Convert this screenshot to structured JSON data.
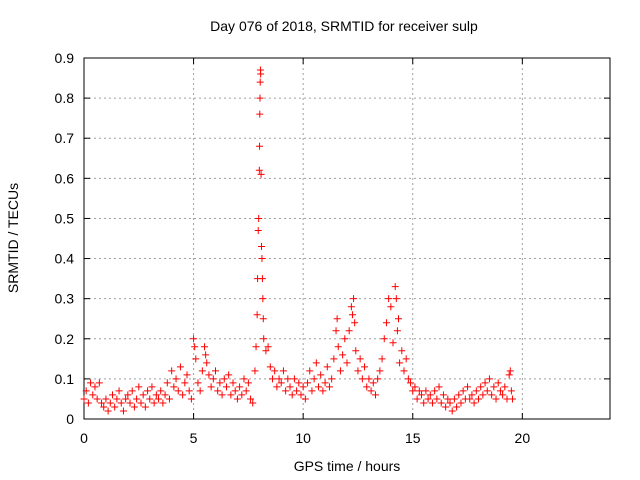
{
  "chart_data": {
    "type": "scatter",
    "title": "Day 076 of 2018, SRMTID for receiver sulp",
    "xlabel": "GPS time / hours",
    "ylabel": "SRMTID / TECUs",
    "xlim": [
      0,
      24
    ],
    "ylim": [
      0,
      0.9
    ],
    "xticks": [
      0,
      5,
      10,
      15,
      20
    ],
    "yticks": [
      0,
      0.1,
      0.2,
      0.3,
      0.4,
      0.5,
      0.6,
      0.7,
      0.8,
      0.9
    ],
    "xtick_labels": [
      "0",
      "5",
      "10",
      "15",
      "20"
    ],
    "ytick_labels": [
      "0",
      "0.1",
      "0.2",
      "0.3",
      "0.4",
      "0.5",
      "0.6",
      "0.7",
      "0.8",
      "0.9"
    ],
    "grid": true,
    "marker": "+",
    "marker_color": "#ff0000",
    "series": [
      {
        "name": "SRMTID",
        "points": [
          [
            0.0,
            0.05
          ],
          [
            0.1,
            0.07
          ],
          [
            0.2,
            0.04
          ],
          [
            0.3,
            0.09
          ],
          [
            0.4,
            0.06
          ],
          [
            0.5,
            0.08
          ],
          [
            0.6,
            0.05
          ],
          [
            0.7,
            0.09
          ],
          [
            0.8,
            0.04
          ],
          [
            0.9,
            0.03
          ],
          [
            1.0,
            0.05
          ],
          [
            1.1,
            0.02
          ],
          [
            1.2,
            0.04
          ],
          [
            1.3,
            0.06
          ],
          [
            1.4,
            0.03
          ],
          [
            1.5,
            0.05
          ],
          [
            1.6,
            0.07
          ],
          [
            1.7,
            0.04
          ],
          [
            1.8,
            0.02
          ],
          [
            1.9,
            0.05
          ],
          [
            2.0,
            0.06
          ],
          [
            2.1,
            0.04
          ],
          [
            2.2,
            0.07
          ],
          [
            2.3,
            0.03
          ],
          [
            2.4,
            0.05
          ],
          [
            2.5,
            0.08
          ],
          [
            2.6,
            0.04
          ],
          [
            2.7,
            0.06
          ],
          [
            2.8,
            0.03
          ],
          [
            2.9,
            0.07
          ],
          [
            3.0,
            0.05
          ],
          [
            3.1,
            0.08
          ],
          [
            3.2,
            0.04
          ],
          [
            3.3,
            0.06
          ],
          [
            3.4,
            0.05
          ],
          [
            3.5,
            0.07
          ],
          [
            3.6,
            0.04
          ],
          [
            3.7,
            0.06
          ],
          [
            3.8,
            0.09
          ],
          [
            3.9,
            0.05
          ],
          [
            4.0,
            0.12
          ],
          [
            4.1,
            0.08
          ],
          [
            4.2,
            0.1
          ],
          [
            4.3,
            0.07
          ],
          [
            4.4,
            0.13
          ],
          [
            4.5,
            0.06
          ],
          [
            4.6,
            0.09
          ],
          [
            4.7,
            0.11
          ],
          [
            4.8,
            0.07
          ],
          [
            4.9,
            0.05
          ],
          [
            5.0,
            0.2
          ],
          [
            5.05,
            0.18
          ],
          [
            5.1,
            0.15
          ],
          [
            5.2,
            0.09
          ],
          [
            5.3,
            0.07
          ],
          [
            5.4,
            0.12
          ],
          [
            5.5,
            0.18
          ],
          [
            5.55,
            0.16
          ],
          [
            5.6,
            0.14
          ],
          [
            5.7,
            0.11
          ],
          [
            5.8,
            0.08
          ],
          [
            5.9,
            0.1
          ],
          [
            6.0,
            0.12
          ],
          [
            6.1,
            0.07
          ],
          [
            6.2,
            0.09
          ],
          [
            6.3,
            0.06
          ],
          [
            6.4,
            0.1
          ],
          [
            6.5,
            0.08
          ],
          [
            6.6,
            0.11
          ],
          [
            6.7,
            0.06
          ],
          [
            6.8,
            0.09
          ],
          [
            6.9,
            0.07
          ],
          [
            7.0,
            0.05
          ],
          [
            7.1,
            0.08
          ],
          [
            7.2,
            0.06
          ],
          [
            7.3,
            0.1
          ],
          [
            7.4,
            0.07
          ],
          [
            7.5,
            0.09
          ],
          [
            7.6,
            0.05
          ],
          [
            7.7,
            0.04
          ],
          [
            7.8,
            0.12
          ],
          [
            7.85,
            0.18
          ],
          [
            7.9,
            0.26
          ],
          [
            7.92,
            0.35
          ],
          [
            7.95,
            0.47
          ],
          [
            7.97,
            0.5
          ],
          [
            8.0,
            0.62
          ],
          [
            8.01,
            0.68
          ],
          [
            8.02,
            0.76
          ],
          [
            8.03,
            0.8
          ],
          [
            8.04,
            0.84
          ],
          [
            8.05,
            0.87
          ],
          [
            8.06,
            0.86
          ],
          [
            8.08,
            0.61
          ],
          [
            8.1,
            0.43
          ],
          [
            8.12,
            0.4
          ],
          [
            8.14,
            0.35
          ],
          [
            8.16,
            0.3
          ],
          [
            8.18,
            0.25
          ],
          [
            8.2,
            0.2
          ],
          [
            8.3,
            0.17
          ],
          [
            8.4,
            0.18
          ],
          [
            8.5,
            0.13
          ],
          [
            8.6,
            0.1
          ],
          [
            8.7,
            0.12
          ],
          [
            8.8,
            0.08
          ],
          [
            8.9,
            0.1
          ],
          [
            9.0,
            0.09
          ],
          [
            9.1,
            0.12
          ],
          [
            9.2,
            0.07
          ],
          [
            9.3,
            0.1
          ],
          [
            9.4,
            0.08
          ],
          [
            9.5,
            0.06
          ],
          [
            9.6,
            0.1
          ],
          [
            9.7,
            0.07
          ],
          [
            9.8,
            0.09
          ],
          [
            9.9,
            0.06
          ],
          [
            10.0,
            0.08
          ],
          [
            10.1,
            0.05
          ],
          [
            10.2,
            0.09
          ],
          [
            10.3,
            0.12
          ],
          [
            10.4,
            0.07
          ],
          [
            10.5,
            0.1
          ],
          [
            10.6,
            0.14
          ],
          [
            10.7,
            0.08
          ],
          [
            10.8,
            0.11
          ],
          [
            10.9,
            0.07
          ],
          [
            11.0,
            0.09
          ],
          [
            11.1,
            0.13
          ],
          [
            11.2,
            0.08
          ],
          [
            11.3,
            0.1
          ],
          [
            11.4,
            0.15
          ],
          [
            11.5,
            0.22
          ],
          [
            11.55,
            0.25
          ],
          [
            11.6,
            0.18
          ],
          [
            11.7,
            0.12
          ],
          [
            11.8,
            0.16
          ],
          [
            11.9,
            0.2
          ],
          [
            12.0,
            0.14
          ],
          [
            12.1,
            0.22
          ],
          [
            12.2,
            0.28
          ],
          [
            12.25,
            0.26
          ],
          [
            12.3,
            0.3
          ],
          [
            12.35,
            0.24
          ],
          [
            12.4,
            0.17
          ],
          [
            12.5,
            0.12
          ],
          [
            12.6,
            0.15
          ],
          [
            12.7,
            0.1
          ],
          [
            12.8,
            0.13
          ],
          [
            12.9,
            0.08
          ],
          [
            13.0,
            0.1
          ],
          [
            13.1,
            0.07
          ],
          [
            13.2,
            0.09
          ],
          [
            13.3,
            0.06
          ],
          [
            13.4,
            0.1
          ],
          [
            13.5,
            0.12
          ],
          [
            13.6,
            0.15
          ],
          [
            13.7,
            0.2
          ],
          [
            13.8,
            0.24
          ],
          [
            13.9,
            0.3
          ],
          [
            14.0,
            0.28
          ],
          [
            14.1,
            0.19
          ],
          [
            14.2,
            0.33
          ],
          [
            14.25,
            0.3
          ],
          [
            14.3,
            0.22
          ],
          [
            14.35,
            0.25
          ],
          [
            14.4,
            0.14
          ],
          [
            14.5,
            0.17
          ],
          [
            14.6,
            0.12
          ],
          [
            14.7,
            0.15
          ],
          [
            14.8,
            0.1
          ],
          [
            14.9,
            0.09
          ],
          [
            15.0,
            0.07
          ],
          [
            15.1,
            0.08
          ],
          [
            15.2,
            0.05
          ],
          [
            15.3,
            0.07
          ],
          [
            15.4,
            0.06
          ],
          [
            15.5,
            0.04
          ],
          [
            15.6,
            0.07
          ],
          [
            15.7,
            0.05
          ],
          [
            15.8,
            0.06
          ],
          [
            15.9,
            0.04
          ],
          [
            16.0,
            0.07
          ],
          [
            16.1,
            0.05
          ],
          [
            16.2,
            0.08
          ],
          [
            16.3,
            0.04
          ],
          [
            16.4,
            0.06
          ],
          [
            16.5,
            0.03
          ],
          [
            16.6,
            0.05
          ],
          [
            16.7,
            0.04
          ],
          [
            16.8,
            0.02
          ],
          [
            16.9,
            0.05
          ],
          [
            17.0,
            0.03
          ],
          [
            17.1,
            0.06
          ],
          [
            17.2,
            0.04
          ],
          [
            17.3,
            0.07
          ],
          [
            17.4,
            0.05
          ],
          [
            17.5,
            0.08
          ],
          [
            17.6,
            0.05
          ],
          [
            17.7,
            0.06
          ],
          [
            17.8,
            0.04
          ],
          [
            17.9,
            0.07
          ],
          [
            18.0,
            0.05
          ],
          [
            18.1,
            0.08
          ],
          [
            18.2,
            0.06
          ],
          [
            18.3,
            0.09
          ],
          [
            18.4,
            0.07
          ],
          [
            18.5,
            0.1
          ],
          [
            18.6,
            0.06
          ],
          [
            18.7,
            0.08
          ],
          [
            18.8,
            0.05
          ],
          [
            18.9,
            0.09
          ],
          [
            19.0,
            0.07
          ],
          [
            19.1,
            0.06
          ],
          [
            19.2,
            0.08
          ],
          [
            19.3,
            0.05
          ],
          [
            19.4,
            0.11
          ],
          [
            19.45,
            0.12
          ],
          [
            19.5,
            0.07
          ],
          [
            19.55,
            0.05
          ]
        ]
      }
    ]
  }
}
